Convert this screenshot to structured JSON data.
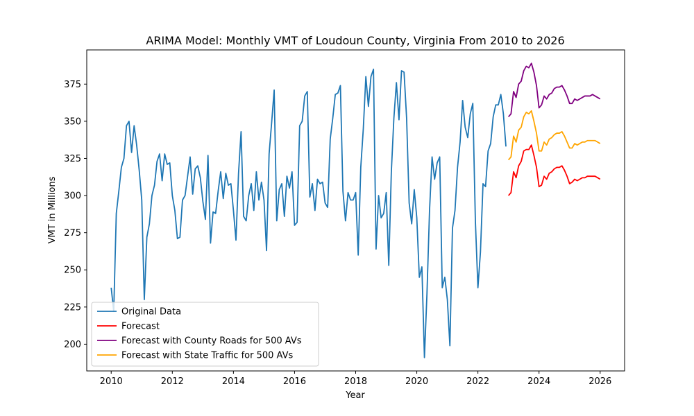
{
  "chart_data": {
    "type": "line",
    "title": "ARIMA Model: Monthly VMT of Loudoun County, Virginia From 2010 to 2026",
    "xlabel": "Year",
    "ylabel": "VMT in Millions",
    "xlim": [
      2009.2,
      2026.8
    ],
    "ylim": [
      182,
      398
    ],
    "xticks": [
      2010,
      2012,
      2014,
      2016,
      2018,
      2020,
      2022,
      2024,
      2026
    ],
    "yticks": [
      200,
      225,
      250,
      275,
      300,
      325,
      350,
      375
    ],
    "grid": false,
    "legend_placement": "lower-left",
    "series": [
      {
        "name": "Original Data",
        "color": "#1f77b4",
        "x": [
          2010.0,
          2010.083,
          2010.167,
          2010.25,
          2010.333,
          2010.417,
          2010.5,
          2010.583,
          2010.667,
          2010.75,
          2010.833,
          2010.917,
          2011.0,
          2011.083,
          2011.167,
          2011.25,
          2011.333,
          2011.417,
          2011.5,
          2011.583,
          2011.667,
          2011.75,
          2011.833,
          2011.917,
          2012.0,
          2012.083,
          2012.167,
          2012.25,
          2012.333,
          2012.417,
          2012.5,
          2012.583,
          2012.667,
          2012.75,
          2012.833,
          2012.917,
          2013.0,
          2013.083,
          2013.167,
          2013.25,
          2013.333,
          2013.417,
          2013.5,
          2013.583,
          2013.667,
          2013.75,
          2013.833,
          2013.917,
          2014.0,
          2014.083,
          2014.167,
          2014.25,
          2014.333,
          2014.417,
          2014.5,
          2014.583,
          2014.667,
          2014.75,
          2014.833,
          2014.917,
          2015.0,
          2015.083,
          2015.167,
          2015.25,
          2015.333,
          2015.417,
          2015.5,
          2015.583,
          2015.667,
          2015.75,
          2015.833,
          2015.917,
          2016.0,
          2016.083,
          2016.167,
          2016.25,
          2016.333,
          2016.417,
          2016.5,
          2016.583,
          2016.667,
          2016.75,
          2016.833,
          2016.917,
          2017.0,
          2017.083,
          2017.167,
          2017.25,
          2017.333,
          2017.417,
          2017.5,
          2017.583,
          2017.667,
          2017.75,
          2017.833,
          2017.917,
          2018.0,
          2018.083,
          2018.167,
          2018.25,
          2018.333,
          2018.417,
          2018.5,
          2018.583,
          2018.667,
          2018.75,
          2018.833,
          2018.917,
          2019.0,
          2019.083,
          2019.167,
          2019.25,
          2019.333,
          2019.417,
          2019.5,
          2019.583,
          2019.667,
          2019.75,
          2019.833,
          2019.917,
          2020.0,
          2020.083,
          2020.167,
          2020.25,
          2020.333,
          2020.417,
          2020.5,
          2020.583,
          2020.667,
          2020.75,
          2020.833,
          2020.917,
          2021.0,
          2021.083,
          2021.167,
          2021.25,
          2021.333,
          2021.417,
          2021.5,
          2021.583,
          2021.667,
          2021.75,
          2021.833,
          2021.917,
          2022.0,
          2022.083,
          2022.167,
          2022.25,
          2022.333,
          2022.417,
          2022.5,
          2022.583,
          2022.667,
          2022.75,
          2022.833,
          2022.917
        ],
        "values": [
          238,
          222,
          288,
          303,
          319,
          325,
          347,
          350,
          329,
          347,
          334,
          317,
          297,
          230,
          272,
          281,
          300,
          307,
          323,
          328,
          310,
          328,
          321,
          322,
          300,
          290,
          271,
          272,
          297,
          300,
          313,
          326,
          301,
          318,
          320,
          312,
          296,
          284,
          327,
          268,
          289,
          288,
          303,
          316,
          298,
          315,
          307,
          308,
          290,
          270,
          315,
          343,
          286,
          283,
          300,
          308,
          290,
          316,
          297,
          309,
          297,
          263,
          328,
          349,
          371,
          283,
          304,
          308,
          286,
          313,
          305,
          316,
          280,
          282,
          347,
          350,
          367,
          370,
          299,
          308,
          290,
          311,
          308,
          309,
          295,
          292,
          338,
          352,
          368,
          369,
          374,
          303,
          283,
          302,
          297,
          297,
          302,
          260,
          319,
          345,
          380,
          360,
          380,
          385,
          264,
          300,
          285,
          288,
          302,
          253,
          316,
          352,
          376,
          351,
          384,
          383,
          352,
          295,
          281,
          304,
          285,
          245,
          252,
          191,
          234,
          290,
          326,
          311,
          322,
          326,
          238,
          245,
          230,
          199,
          278,
          290,
          319,
          336,
          364,
          346,
          339,
          355,
          362,
          283,
          238,
          262,
          308,
          306,
          330,
          335,
          353,
          361,
          361,
          368,
          355,
          333
        ]
      },
      {
        "name": "Forecast",
        "color": "#ff0000",
        "x": [
          2023.0,
          2023.083,
          2023.167,
          2023.25,
          2023.333,
          2023.417,
          2023.5,
          2023.583,
          2023.667,
          2023.75,
          2023.833,
          2023.917,
          2024.0,
          2024.083,
          2024.167,
          2024.25,
          2024.333,
          2024.417,
          2024.5,
          2024.583,
          2024.667,
          2024.75,
          2024.833,
          2024.917,
          2025.0,
          2025.083,
          2025.167,
          2025.25,
          2025.333,
          2025.417,
          2025.5,
          2025.583,
          2025.667,
          2025.75,
          2025.833,
          2025.917,
          2026.0
        ],
        "values": [
          300,
          302,
          316,
          312,
          320,
          323,
          330,
          331,
          331,
          334,
          327,
          319,
          306,
          307,
          313,
          311,
          315,
          316,
          318,
          319,
          319,
          320,
          317,
          313,
          308,
          309,
          311,
          310,
          311,
          312,
          312,
          313,
          313,
          313,
          313,
          312,
          311
        ]
      },
      {
        "name": "Forecast with County Roads for 500 AVs",
        "color": "#800080",
        "x": [
          2023.0,
          2023.083,
          2023.167,
          2023.25,
          2023.333,
          2023.417,
          2023.5,
          2023.583,
          2023.667,
          2023.75,
          2023.833,
          2023.917,
          2024.0,
          2024.083,
          2024.167,
          2024.25,
          2024.333,
          2024.417,
          2024.5,
          2024.583,
          2024.667,
          2024.75,
          2024.833,
          2024.917,
          2025.0,
          2025.083,
          2025.167,
          2025.25,
          2025.333,
          2025.417,
          2025.5,
          2025.583,
          2025.667,
          2025.75,
          2025.833,
          2025.917,
          2026.0
        ],
        "values": [
          353,
          355,
          370,
          366,
          375,
          377,
          384,
          387,
          386,
          389,
          383,
          374,
          359,
          361,
          367,
          365,
          368,
          369,
          372,
          373,
          373,
          374,
          371,
          367,
          362,
          362,
          365,
          364,
          365,
          366,
          367,
          367,
          367,
          368,
          367,
          366,
          365
        ]
      },
      {
        "name": "Forecast with State Traffic for 500 AVs",
        "color": "#ffa500",
        "x": [
          2023.0,
          2023.083,
          2023.167,
          2023.25,
          2023.333,
          2023.417,
          2023.5,
          2023.583,
          2023.667,
          2023.75,
          2023.833,
          2023.917,
          2024.0,
          2024.083,
          2024.167,
          2024.25,
          2024.333,
          2024.417,
          2024.5,
          2024.583,
          2024.667,
          2024.75,
          2024.833,
          2024.917,
          2025.0,
          2025.083,
          2025.167,
          2025.25,
          2025.333,
          2025.417,
          2025.5,
          2025.583,
          2025.667,
          2025.75,
          2025.833,
          2025.917,
          2026.0
        ],
        "values": [
          324,
          326,
          340,
          336,
          344,
          346,
          353,
          356,
          355,
          357,
          350,
          342,
          330,
          330,
          336,
          334,
          338,
          339,
          341,
          342,
          342,
          343,
          340,
          336,
          332,
          332,
          335,
          334,
          335,
          336,
          336,
          337,
          337,
          337,
          337,
          336,
          335
        ]
      }
    ]
  }
}
